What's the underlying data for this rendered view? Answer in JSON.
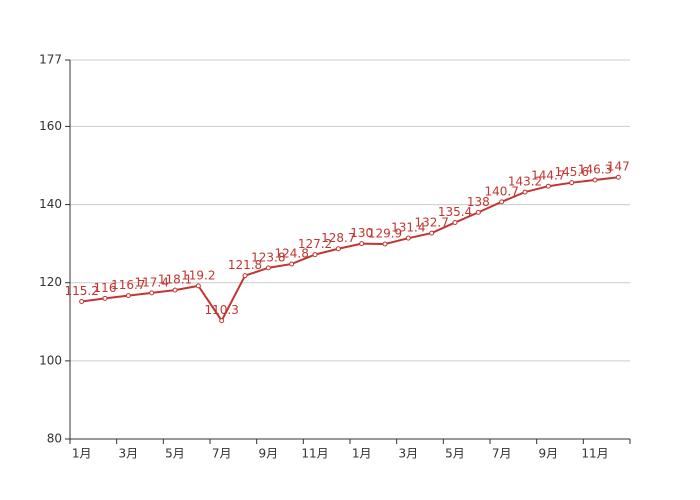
{
  "chart_data": {
    "type": "line",
    "categories": [
      "1月",
      null,
      "3月",
      null,
      "5月",
      null,
      "7月",
      null,
      "9月",
      null,
      "11月",
      null,
      "1月",
      null,
      "3月",
      null,
      "5月",
      null,
      "7月",
      null,
      "9月",
      null,
      "11月",
      null
    ],
    "values": [
      115.2,
      116,
      116.7,
      117.4,
      118.1,
      119.2,
      110.3,
      121.8,
      123.8,
      124.8,
      127.2,
      128.7,
      130,
      129.9,
      131.4,
      132.7,
      135.4,
      138,
      140.7,
      143.2,
      144.7,
      145.6,
      146.3,
      147
    ],
    "color": "#c23531",
    "ylim": [
      80,
      177
    ],
    "yticks": [
      80,
      100,
      120,
      140,
      160,
      177
    ],
    "grid": true
  }
}
